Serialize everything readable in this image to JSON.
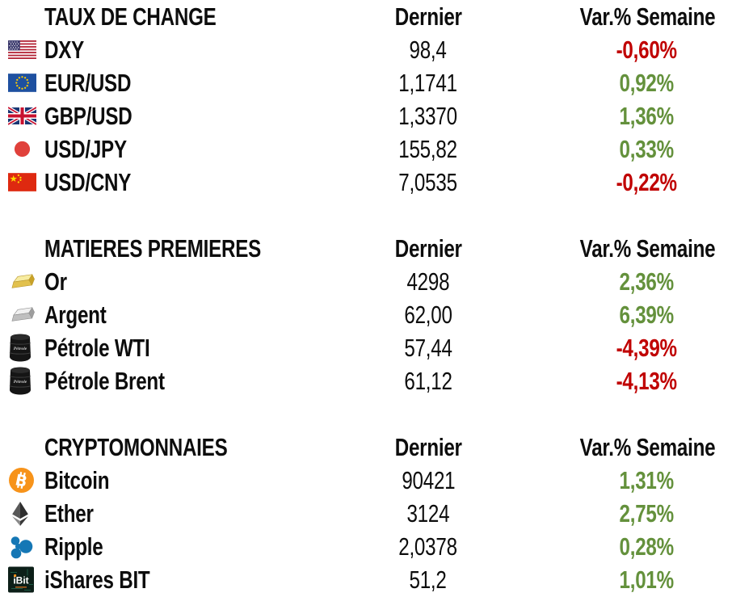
{
  "columns": {
    "dernier": "Dernier",
    "variation": "Var.% Semaine"
  },
  "colors": {
    "positive": "#64913C",
    "negative": "#C00000",
    "text": "#0D0D0D"
  },
  "sections": [
    {
      "title": "TAUX DE CHANGE",
      "rows": [
        {
          "icon": "us-flag",
          "label": "DXY",
          "last": "98,4",
          "var": "-0,60%",
          "trend": "down"
        },
        {
          "icon": "eu-flag",
          "label": "EUR/USD",
          "last": "1,1741",
          "var": "0,92%",
          "trend": "up"
        },
        {
          "icon": "uk-flag",
          "label": "GBP/USD",
          "last": "1,3370",
          "var": "1,36%",
          "trend": "up"
        },
        {
          "icon": "japan-flag",
          "label": "USD/JPY",
          "last": "155,82",
          "var": "0,33%",
          "trend": "up"
        },
        {
          "icon": "china-flag",
          "label": "USD/CNY",
          "last": "7,0535",
          "var": "-0,22%",
          "trend": "down"
        }
      ]
    },
    {
      "title": "MATIERES PREMIERES",
      "rows": [
        {
          "icon": "gold-bar",
          "label": "Or",
          "last": "4298",
          "var": "2,36%",
          "trend": "up"
        },
        {
          "icon": "silver-bar",
          "label": "Argent",
          "last": "62,00",
          "var": "6,39%",
          "trend": "up"
        },
        {
          "icon": "oil-barrel",
          "label": "Pétrole WTI",
          "last": "57,44",
          "var": "-4,39%",
          "trend": "down"
        },
        {
          "icon": "oil-barrel",
          "label": "Pétrole Brent",
          "last": "61,12",
          "var": "-4,13%",
          "trend": "down"
        }
      ]
    },
    {
      "title": "CRYPTOMONNAIES",
      "rows": [
        {
          "icon": "bitcoin",
          "label": "Bitcoin",
          "last": "90421",
          "var": "1,31%",
          "trend": "up"
        },
        {
          "icon": "ethereum",
          "label": "Ether",
          "last": "3124",
          "var": "2,75%",
          "trend": "up"
        },
        {
          "icon": "ripple",
          "label": "Ripple",
          "last": "2,0378",
          "var": "0,28%",
          "trend": "up"
        },
        {
          "icon": "ibit",
          "label": "iShares BIT",
          "last": "51,2",
          "var": "1,01%",
          "trend": "up"
        }
      ]
    }
  ],
  "chart_data": {
    "type": "table",
    "tables": [
      {
        "title": "TAUX DE CHANGE",
        "columns": [
          "",
          "Dernier",
          "Var.% Semaine"
        ],
        "rows": [
          [
            "DXY",
            98.4,
            -0.6
          ],
          [
            "EUR/USD",
            1.1741,
            0.92
          ],
          [
            "GBP/USD",
            1.337,
            1.36
          ],
          [
            "USD/JPY",
            155.82,
            0.33
          ],
          [
            "USD/CNY",
            7.0535,
            -0.22
          ]
        ]
      },
      {
        "title": "MATIERES PREMIERES",
        "columns": [
          "",
          "Dernier",
          "Var.% Semaine"
        ],
        "rows": [
          [
            "Or",
            4298,
            2.36
          ],
          [
            "Argent",
            62.0,
            6.39
          ],
          [
            "Pétrole WTI",
            57.44,
            -4.39
          ],
          [
            "Pétrole Brent",
            61.12,
            -4.13
          ]
        ]
      },
      {
        "title": "CRYPTOMONNAIES",
        "columns": [
          "",
          "Dernier",
          "Var.% Semaine"
        ],
        "rows": [
          [
            "Bitcoin",
            90421,
            1.31
          ],
          [
            "Ether",
            3124,
            2.75
          ],
          [
            "Ripple",
            2.0378,
            0.28
          ],
          [
            "iShares BIT",
            51.2,
            1.01
          ]
        ]
      }
    ],
    "notes": "positive variations rendered in green #64913C, negative in red #C00000"
  }
}
